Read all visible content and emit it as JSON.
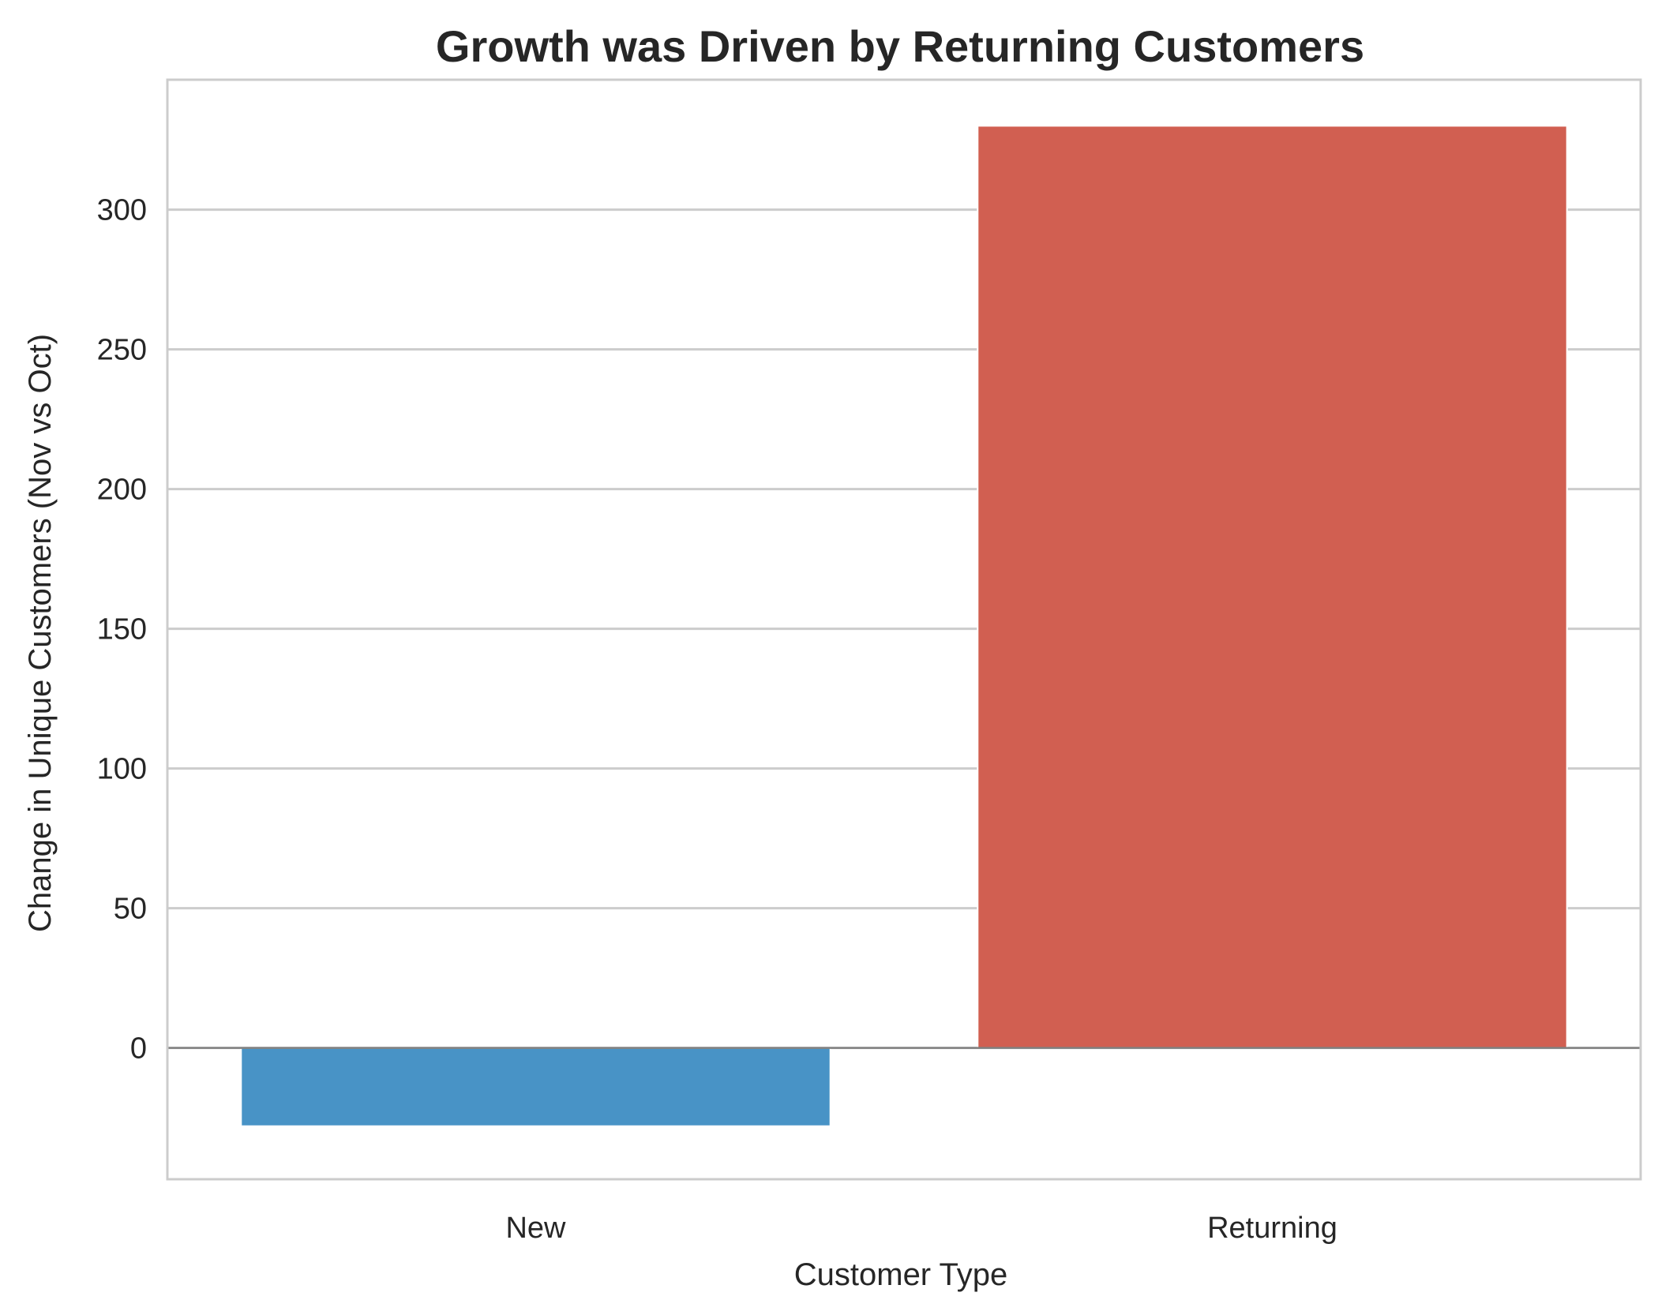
{
  "chart_data": {
    "type": "bar",
    "title": "Growth was Driven by Returning Customers",
    "xlabel": "Customer Type",
    "ylabel": "Change in Unique Customers (Nov vs Oct)",
    "categories": [
      "New",
      "Returning"
    ],
    "values": [
      -28,
      330
    ],
    "colors": [
      "#4893c6",
      "#d15f51"
    ],
    "ylim": [
      -47,
      346.5
    ],
    "yticks": [
      0,
      50,
      100,
      150,
      200,
      250,
      300
    ],
    "grid": true,
    "zero_line": true,
    "legend": false
  }
}
